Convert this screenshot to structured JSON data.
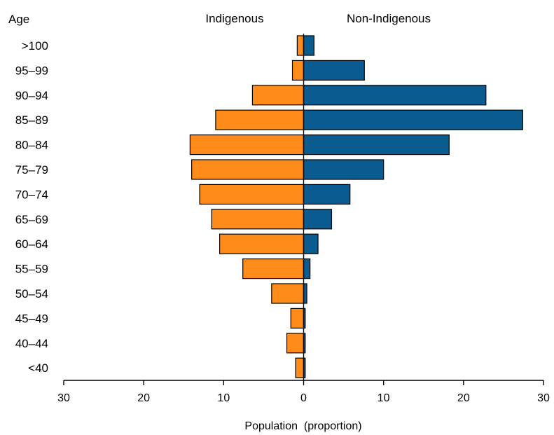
{
  "chart_data": {
    "type": "bar",
    "orientation": "horizontal",
    "layout": "population-pyramid",
    "title": "",
    "ylabel": "Age",
    "xlabel": "Population  (proportion)",
    "categories": [
      ">100",
      "95–99",
      "90–94",
      "85–89",
      "80–84",
      "75–79",
      "70–74",
      "65–69",
      "60–64",
      "55–59",
      "50–54",
      "45–49",
      "40–44",
      "<40"
    ],
    "series": [
      {
        "name": "Indigenous",
        "side": "left",
        "color": "#ff8c1a",
        "values": [
          0.8,
          1.4,
          6.4,
          11.0,
          14.2,
          14.0,
          13.0,
          11.5,
          10.5,
          7.6,
          4.0,
          1.6,
          2.1,
          1.0
        ]
      },
      {
        "name": "Non-Indigenous",
        "side": "right",
        "color": "#0a5b8f",
        "values": [
          1.3,
          7.6,
          22.8,
          27.4,
          18.2,
          10.0,
          5.8,
          3.5,
          1.8,
          0.8,
          0.4,
          0.2,
          0.2,
          0.2
        ]
      }
    ],
    "xlim": [
      -30,
      30
    ],
    "xticks": [
      -30,
      -20,
      -10,
      0,
      10,
      20,
      30
    ],
    "xtick_labels": [
      "30",
      "20",
      "10",
      "0",
      "10",
      "20",
      "30"
    ],
    "grid": false,
    "legend": "top"
  }
}
